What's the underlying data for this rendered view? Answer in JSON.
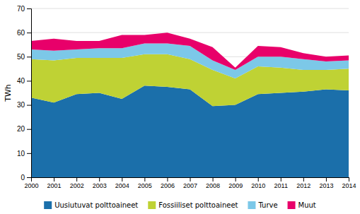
{
  "chart_data": {
    "type": "area",
    "stacked": true,
    "x": [
      2000,
      2001,
      2002,
      2003,
      2004,
      2005,
      2006,
      2007,
      2008,
      2009,
      2010,
      2011,
      2012,
      2013,
      2014
    ],
    "series": [
      {
        "name": "Uusiutuvat polttoaineet",
        "color": "#1b6faa",
        "values": [
          33.0,
          31.0,
          34.5,
          35.0,
          32.5,
          38.0,
          37.5,
          36.5,
          29.5,
          30.0,
          34.5,
          35.0,
          35.5,
          36.5,
          36.0
        ]
      },
      {
        "name": "Fossiiliset polttoaineet",
        "color": "#bfd234",
        "values": [
          16.0,
          17.5,
          15.0,
          14.5,
          17.0,
          13.0,
          13.5,
          12.5,
          15.0,
          11.0,
          11.5,
          10.5,
          9.0,
          8.0,
          9.0
        ]
      },
      {
        "name": "Turve",
        "color": "#7cc8e8",
        "values": [
          4.0,
          4.0,
          3.5,
          4.0,
          4.0,
          4.5,
          4.5,
          5.5,
          4.0,
          3.5,
          4.0,
          4.5,
          4.5,
          3.5,
          3.5
        ]
      },
      {
        "name": "Muut",
        "color": "#e8006a",
        "values": [
          3.5,
          5.0,
          3.5,
          3.0,
          5.5,
          3.5,
          4.5,
          3.0,
          5.5,
          1.0,
          4.5,
          4.0,
          2.5,
          2.0,
          2.0
        ]
      }
    ],
    "ylabel": "TWh",
    "xlim": [
      2000,
      2014
    ],
    "xticks": [
      2000,
      2001,
      2002,
      2003,
      2004,
      2005,
      2006,
      2007,
      2008,
      2009,
      2010,
      2011,
      2012,
      2013,
      2014
    ],
    "ylim": [
      0,
      70
    ],
    "yticks": [
      0,
      10,
      20,
      30,
      40,
      50,
      60,
      70
    ],
    "grid": "y",
    "legend": "bottom"
  }
}
